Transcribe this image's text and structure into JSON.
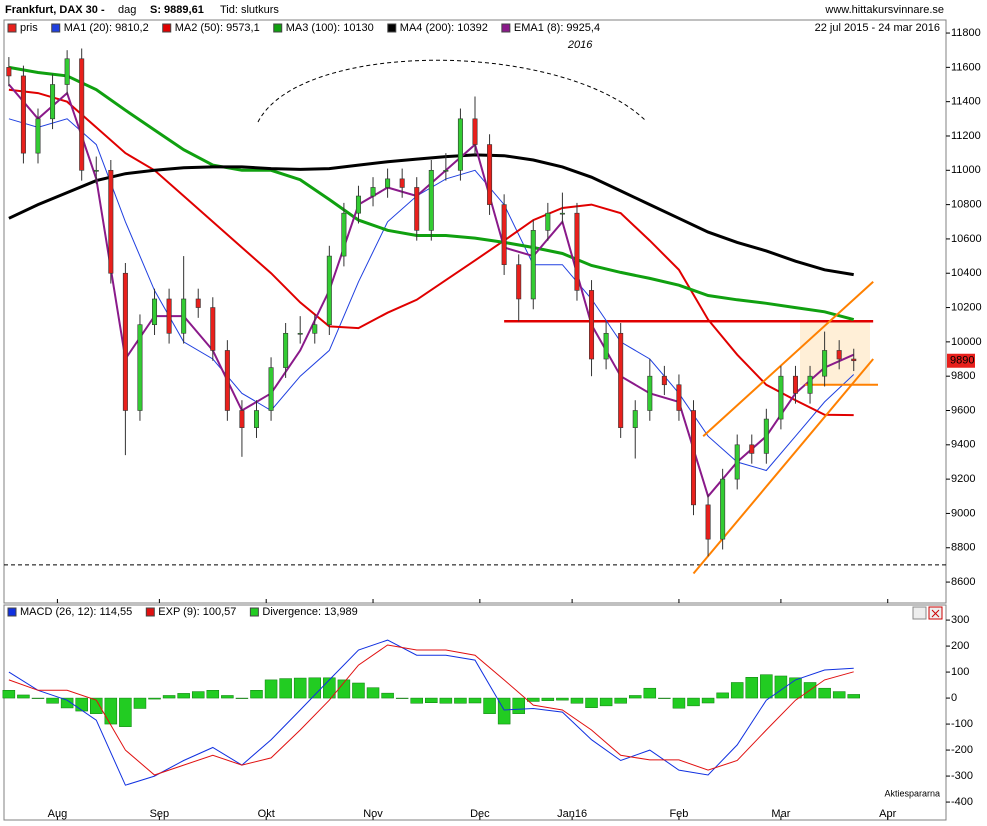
{
  "chart_data": [
    {
      "type": "candlestick",
      "title": "Frankfurt, DAX 30 -",
      "period": "dag",
      "last_close_text": "S: 9889,61",
      "price_basis": "Tid: slutkurs",
      "source": "www.hittakursvinnare.se",
      "date_range": "22 jul 2015 - 24 mar 2016",
      "year_annotation": "2016",
      "candle_name": "pris",
      "up_color": "#33cc33",
      "down_color": "#e8201c",
      "candles": {
        "x": [
          0,
          3,
          6,
          9,
          12,
          15,
          18,
          21,
          24,
          27,
          30,
          33,
          36,
          39,
          42,
          45,
          48,
          51,
          54,
          57,
          60,
          63,
          66,
          69,
          72,
          75,
          78,
          81,
          84,
          87,
          90,
          93,
          96,
          99,
          102,
          105,
          108,
          111,
          114,
          117,
          120,
          123,
          126,
          129,
          132,
          135,
          138,
          141,
          144,
          147,
          150,
          153,
          156,
          159,
          162,
          165,
          168,
          171,
          174
        ],
        "open": [
          11600,
          11550,
          11100,
          11300,
          11500,
          11650,
          11000,
          11000,
          10400,
          9600,
          10100,
          10250,
          10050,
          10250,
          10200,
          9950,
          9600,
          9500,
          9600,
          9850,
          10050,
          10050,
          10100,
          10500,
          10750,
          10850,
          10900,
          10950,
          10900,
          10650,
          11000,
          11000,
          11300,
          11150,
          10800,
          10450,
          10250,
          10650,
          10750,
          10750,
          10300,
          9900,
          10050,
          9500,
          9600,
          9800,
          9750,
          9600,
          9050,
          8850,
          9200,
          9400,
          9350,
          9550,
          9800,
          9700,
          9800,
          9950,
          9900
        ],
        "high": [
          11660,
          11610,
          11360,
          11560,
          11700,
          11710,
          11080,
          11060,
          10460,
          10160,
          10310,
          10310,
          10500,
          10310,
          10260,
          10010,
          9660,
          9660,
          9910,
          10110,
          10150,
          10160,
          10560,
          10810,
          10910,
          10960,
          11010,
          11010,
          10960,
          11060,
          11100,
          11360,
          11430,
          11210,
          10860,
          10510,
          10710,
          10810,
          10870,
          10810,
          10360,
          10120,
          10110,
          9660,
          9900,
          9860,
          9810,
          9660,
          9110,
          9260,
          9460,
          9460,
          9610,
          9860,
          9860,
          9860,
          10060,
          10010,
          9960
        ],
        "low": [
          11490,
          11040,
          11040,
          11240,
          11440,
          10940,
          10920,
          10340,
          9340,
          9540,
          10040,
          9990,
          9990,
          10140,
          9890,
          9540,
          9330,
          9440,
          9540,
          9790,
          9990,
          9990,
          10040,
          10440,
          10690,
          10790,
          10840,
          10840,
          10590,
          10590,
          10940,
          10940,
          11090,
          10740,
          10390,
          10120,
          10190,
          10590,
          10690,
          10240,
          9800,
          9840,
          9440,
          9320,
          9540,
          9690,
          9540,
          8990,
          8750,
          8790,
          9140,
          9290,
          9290,
          9490,
          9640,
          9640,
          9740,
          9840,
          9830
        ],
        "close": [
          11550,
          11100,
          11300,
          11500,
          11650,
          11000,
          11000,
          10400,
          9600,
          10100,
          10250,
          10050,
          10250,
          10200,
          9950,
          9600,
          9500,
          9600,
          9850,
          10050,
          10050,
          10100,
          10500,
          10750,
          10850,
          10900,
          10950,
          10900,
          10650,
          11000,
          11000,
          11300,
          11150,
          10800,
          10450,
          10250,
          10650,
          10750,
          10750,
          10300,
          9900,
          10050,
          9500,
          9600,
          9800,
          9750,
          9600,
          9050,
          8850,
          9200,
          9400,
          9350,
          9550,
          9800,
          9700,
          9800,
          9950,
          9900,
          9890
        ]
      },
      "x": [
        0,
        6,
        12,
        18,
        24,
        30,
        36,
        42,
        48,
        54,
        60,
        66,
        72,
        78,
        84,
        90,
        96,
        102,
        108,
        114,
        120,
        126,
        132,
        138,
        144,
        150,
        156,
        162,
        168,
        174
      ],
      "series": [
        {
          "name": "MA1 (20): 9810,2",
          "color": "#2040e0",
          "width": 1,
          "values": [
            11300,
            11250,
            11300,
            11150,
            10700,
            10300,
            10000,
            9900,
            9700,
            9600,
            9800,
            9950,
            10350,
            10700,
            10850,
            10950,
            11000,
            10800,
            10450,
            10450,
            10250,
            10000,
            9900,
            9700,
            9450,
            9300,
            9250,
            9450,
            9650,
            9810
          ]
        },
        {
          "name": "MA2 (50): 9573,1",
          "color": "#e00000",
          "width": 2,
          "values": [
            11470,
            11450,
            11400,
            11250,
            11100,
            11000,
            10850,
            10700,
            10550,
            10400,
            10230,
            10090,
            10080,
            10170,
            10245,
            10360,
            10475,
            10590,
            10710,
            10780,
            10800,
            10750,
            10590,
            10420,
            10130,
            9925,
            9750,
            9660,
            9575,
            9573
          ]
        },
        {
          "name": "MA3 (100): 10130",
          "color": "#10a010",
          "width": 3,
          "values": [
            11600,
            11570,
            11550,
            11470,
            11350,
            11235,
            11120,
            11030,
            11000,
            11000,
            10945,
            10830,
            10710,
            10650,
            10620,
            10620,
            10605,
            10580,
            10550,
            10515,
            10445,
            10405,
            10370,
            10330,
            10270,
            10245,
            10225,
            10200,
            10175,
            10130
          ]
        },
        {
          "name": "MA4 (200): 10392",
          "color": "#000000",
          "width": 3,
          "values": [
            10720,
            10800,
            10870,
            10940,
            10980,
            11000,
            11015,
            11020,
            11020,
            11010,
            11005,
            11010,
            11030,
            11050,
            11065,
            11080,
            11090,
            11085,
            11060,
            11020,
            10960,
            10880,
            10800,
            10720,
            10640,
            10580,
            10530,
            10470,
            10420,
            10392
          ]
        },
        {
          "name": "EMA1 (8): 9925,4",
          "color": "#8a1a8a",
          "width": 2,
          "values": [
            11500,
            11300,
            11450,
            10950,
            9900,
            10150,
            10150,
            9950,
            9600,
            9700,
            9950,
            10300,
            10800,
            10900,
            10850,
            11000,
            11150,
            10550,
            10500,
            10700,
            10100,
            9800,
            9700,
            9650,
            9100,
            9300,
            9450,
            9700,
            9850,
            9925
          ]
        }
      ],
      "levels": [
        {
          "value": 8700,
          "x": [
            -1,
            193
          ],
          "color": "#000000",
          "style": "dashed"
        },
        {
          "value": 10120,
          "x": [
            102,
            178
          ],
          "color": "#e00000",
          "style": "solid"
        }
      ],
      "trendlines": [
        {
          "x": [
            143,
            178
          ],
          "values": [
            9450,
            10350
          ],
          "color": "#ff8000"
        },
        {
          "x": [
            141,
            178
          ],
          "values": [
            8650,
            9900
          ],
          "color": "#ff8000"
        },
        {
          "x": [
            164,
            179
          ],
          "values": [
            9750,
            9750
          ],
          "color": "#ff8000"
        }
      ],
      "last_marker": 9890,
      "xlim": [
        -1,
        193
      ],
      "xticks": [
        {
          "value": 10,
          "label": "Aug"
        },
        {
          "value": 31,
          "label": "Sep"
        },
        {
          "value": 53,
          "label": "Okt"
        },
        {
          "value": 75,
          "label": "Nov"
        },
        {
          "value": 97,
          "label": "Dec"
        },
        {
          "value": 116,
          "label": "Jan16"
        },
        {
          "value": 138,
          "label": "Feb"
        },
        {
          "value": 159,
          "label": "Mar"
        },
        {
          "value": 181,
          "label": "Apr"
        }
      ],
      "ylim": [
        8478,
        11876
      ],
      "yticks": [
        8600,
        8800,
        9000,
        9200,
        9400,
        9600,
        9800,
        10000,
        10200,
        10400,
        10600,
        10800,
        11000,
        11200,
        11400,
        11600,
        11800
      ]
    },
    {
      "type": "macd",
      "watermark": "Aktiespararna",
      "x": [
        0,
        6,
        12,
        18,
        24,
        30,
        36,
        42,
        48,
        54,
        60,
        66,
        72,
        78,
        84,
        90,
        96,
        102,
        108,
        114,
        120,
        126,
        132,
        138,
        144,
        150,
        156,
        162,
        168,
        174
      ],
      "series": [
        {
          "name": "MACD (26, 12): 114,55",
          "color": "#1030e0",
          "values": [
            100,
            30,
            -8,
            -85,
            -335,
            -300,
            -240,
            -190,
            -258,
            -160,
            -46,
            70,
            185,
            223,
            165,
            165,
            146,
            -46,
            -40,
            -54,
            -160,
            -240,
            -200,
            -277,
            -296,
            -180,
            -8,
            70,
            108,
            115
          ]
        },
        {
          "name": "EXP (9): 100,57",
          "color": "#e01010",
          "values": [
            70,
            30,
            30,
            -8,
            -200,
            -296,
            -258,
            -220,
            -258,
            -230,
            -123,
            -8,
            127,
            204,
            185,
            185,
            165,
            70,
            -27,
            -46,
            -123,
            -220,
            -238,
            -238,
            -277,
            -240,
            -123,
            -8,
            70,
            101
          ]
        }
      ],
      "divergence": {
        "name": "Divergence: 13,989",
        "color": "#22cc22",
        "x": [
          0,
          3,
          6,
          9,
          12,
          15,
          18,
          21,
          24,
          27,
          30,
          33,
          36,
          39,
          42,
          45,
          48,
          51,
          54,
          57,
          60,
          63,
          66,
          69,
          72,
          75,
          78,
          81,
          84,
          87,
          90,
          93,
          96,
          99,
          102,
          105,
          108,
          111,
          114,
          117,
          120,
          123,
          126,
          129,
          132,
          135,
          138,
          141,
          144,
          147,
          150,
          153,
          156,
          159,
          162,
          165,
          168,
          171,
          174
        ],
        "values": [
          30,
          12,
          0,
          -20,
          -38,
          -50,
          -60,
          -100,
          -110,
          -40,
          -4,
          10,
          18,
          25,
          30,
          10,
          0,
          30,
          70,
          75,
          77,
          78,
          78,
          70,
          58,
          40,
          19,
          0,
          -20,
          -18,
          -20,
          -20,
          -19,
          -60,
          -100,
          -60,
          -13,
          -10,
          -8,
          -20,
          -37,
          -30,
          -20,
          10,
          38,
          0,
          -39,
          -30,
          -19,
          20,
          60,
          80,
          90,
          85,
          78,
          60,
          38,
          25,
          14
        ]
      },
      "ylim": [
        -469,
        358
      ],
      "yticks": [
        -400,
        -300,
        -200,
        -100,
        0,
        100,
        200,
        300
      ]
    }
  ]
}
